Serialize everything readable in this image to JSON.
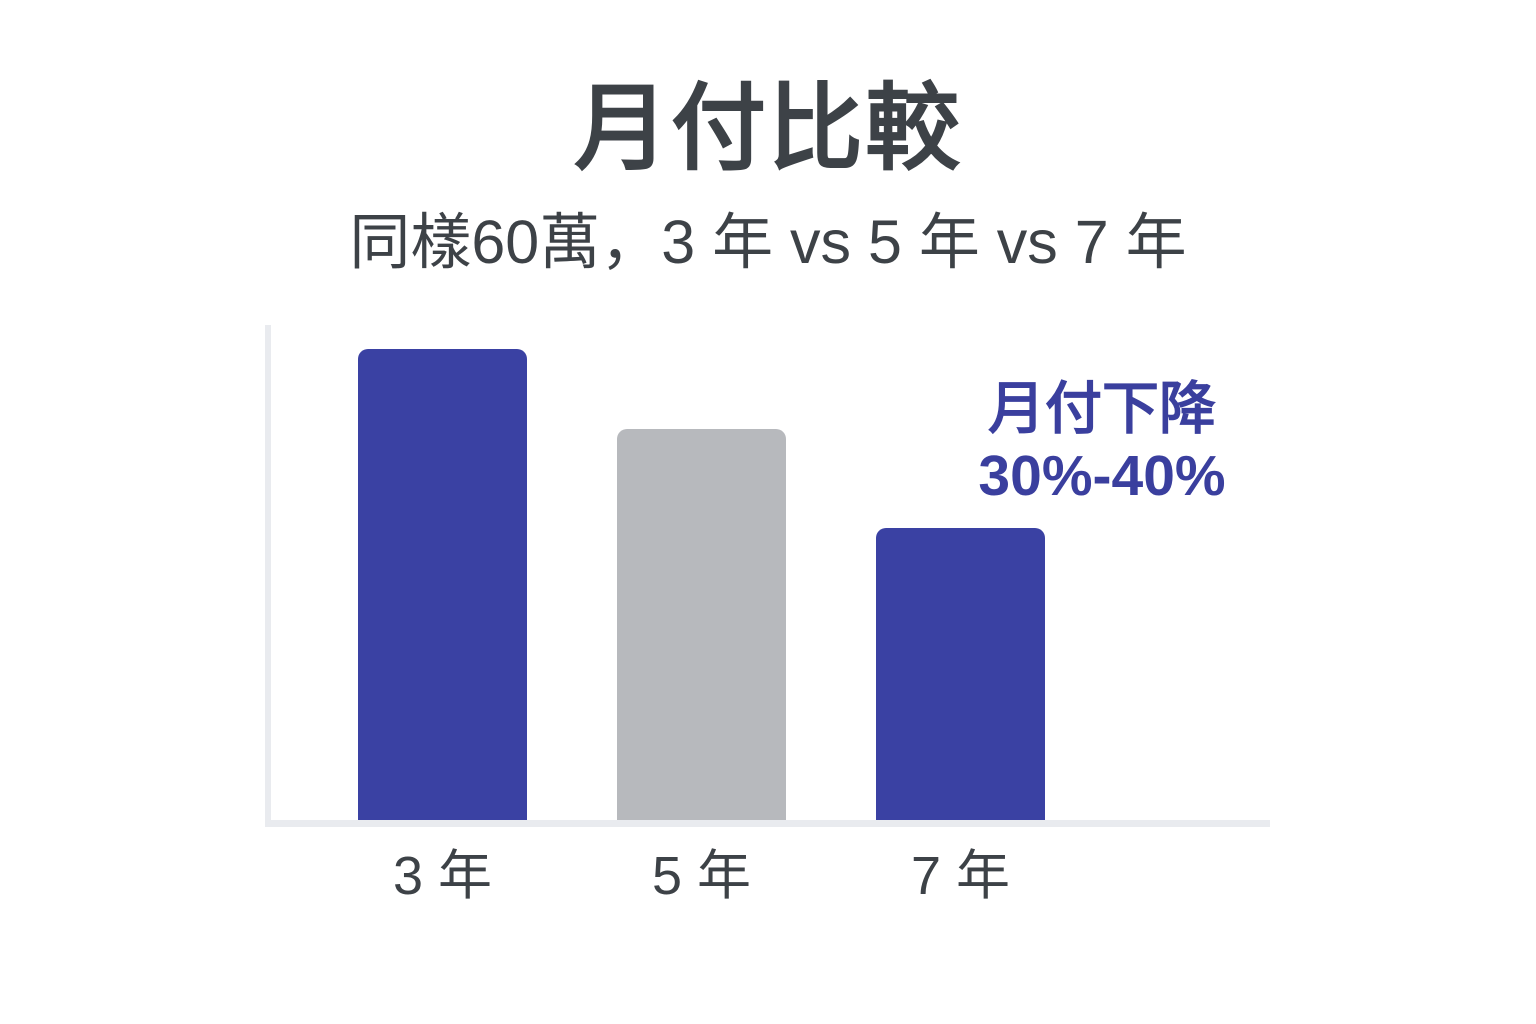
{
  "header": {
    "title": "月付比較",
    "subtitle": "同樣60萬，3 年 vs 5 年 vs 7 年"
  },
  "annotation": {
    "line1": "月付下降",
    "line2": "30%-40%"
  },
  "colors": {
    "primary_blue": "#3a41a3",
    "neutral_gray": "#b7b9bd",
    "annotation_blue": "#3a3f9e",
    "text_dark": "#3d4247",
    "axis_gray": "#e9ebef",
    "background": "#ffffff"
  },
  "chart_data": {
    "type": "bar",
    "title": "月付比較",
    "subtitle": "同樣60萬，3 年 vs 5 年 vs 7 年",
    "categories": [
      "3 年",
      "5 年",
      "7 年"
    ],
    "values": [
      100,
      83,
      62
    ],
    "value_scale": "relative bar height index (3-year bar = 100); no numeric axis or value labels shown",
    "ylim": [
      0,
      105
    ],
    "bar_colors": [
      "#3a41a3",
      "#b7b9bd",
      "#3a41a3"
    ],
    "grid": false,
    "legend": false,
    "xlabel": "",
    "ylabel": "",
    "annotation": {
      "text": "月付下降 30%-40%",
      "color": "#3a3f9e",
      "position": "upper right, beside middle and above right bar"
    }
  }
}
